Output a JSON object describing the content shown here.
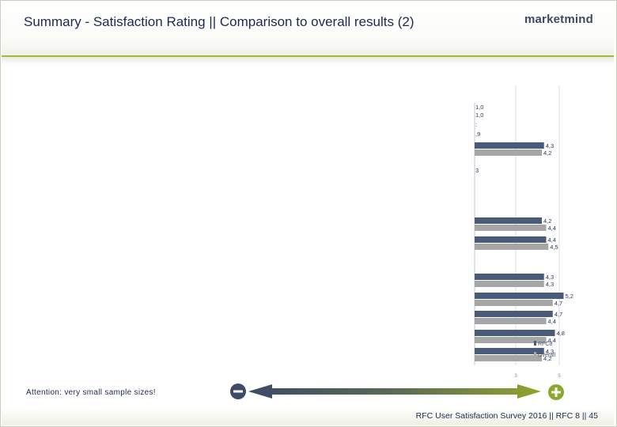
{
  "title": "Summary - Satisfaction Rating || Comparison to overall results (2)",
  "logo": "marketmind",
  "note": "Attention: very small sample sizes!",
  "footer": "RFC User Satisfaction Survey 2016 || RFC 8 || 45",
  "colors": {
    "rfc": "#4a5b7a",
    "overall": "#a6a6a6",
    "accent": "#a9b832",
    "minus": "#3e4a66",
    "plus": "#8aa82a"
  },
  "icons": {
    "minus": "minus-circle-icon",
    "plus": "plus-circle-icon"
  },
  "chart_data": {
    "type": "bar",
    "orientation": "horizontal",
    "axis_ticks": [
      "3",
      "5"
    ],
    "legend": {
      "position": "bottom-right",
      "entries": [
        "RFC8",
        "Overall"
      ]
    },
    "left_partial_labels": [
      {
        "row": 1,
        "text": "1,0"
      },
      {
        "row": 2,
        "text": "1,0"
      },
      {
        "row": 3,
        "text": ":"
      },
      {
        "row": 4,
        "text": ",9"
      },
      {
        "row": 5,
        "text": "3"
      }
    ],
    "series": [
      {
        "name": "RFC8",
        "values": [
          4.3,
          4.2,
          4.4,
          4.3,
          5.2,
          4.7,
          4.8,
          4.3
        ]
      },
      {
        "name": "Overall",
        "values": [
          4.2,
          4.4,
          4.5,
          4.3,
          4.7,
          4.4,
          4.4,
          4.2
        ]
      }
    ],
    "labels": {
      "RFC8": [
        "4,3",
        "4,2",
        "4,4",
        "4,3",
        "5,2",
        "4,7",
        "4,8",
        "4,3"
      ],
      "Overall": [
        "4,2",
        "4,4",
        "4,5",
        "4,3",
        "4,7",
        "4,4",
        "4,4",
        "4,2"
      ]
    }
  }
}
